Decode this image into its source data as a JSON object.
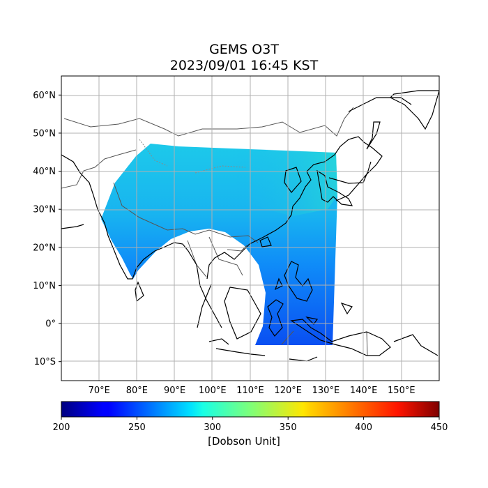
{
  "title": "GEMS O3T",
  "subtitle": "2023/09/01 16:45 KST",
  "map": {
    "lon_range": [
      60,
      160
    ],
    "lat_range": [
      -15,
      65
    ],
    "lat_ticks": [
      {
        "value": 60,
        "label": "60°N"
      },
      {
        "value": 50,
        "label": "50°N"
      },
      {
        "value": 40,
        "label": "40°N"
      },
      {
        "value": 30,
        "label": "30°N"
      },
      {
        "value": 20,
        "label": "20°N"
      },
      {
        "value": 10,
        "label": "10°N"
      },
      {
        "value": 0,
        "label": "0°"
      },
      {
        "value": -10,
        "label": "10°S"
      }
    ],
    "lon_ticks": [
      {
        "value": 70,
        "label": "70°E"
      },
      {
        "value": 80,
        "label": "80°E"
      },
      {
        "value": 90,
        "label": "90°E"
      },
      {
        "value": 100,
        "label": "100°E"
      },
      {
        "value": 110,
        "label": "110°E"
      },
      {
        "value": 120,
        "label": "120°E"
      },
      {
        "value": 130,
        "label": "130°E"
      },
      {
        "value": 140,
        "label": "140°E"
      },
      {
        "value": 150,
        "label": "150°E"
      }
    ],
    "grid": true,
    "gridline_color": "#b0b0b0",
    "coastline_color": "#000000",
    "border_color": "#555555"
  },
  "colorbar": {
    "colormap": "jet",
    "min": 200,
    "max": 450,
    "ticks": [
      "200",
      "250",
      "300",
      "350",
      "400",
      "450"
    ],
    "label": "[Dobson Unit]"
  }
}
